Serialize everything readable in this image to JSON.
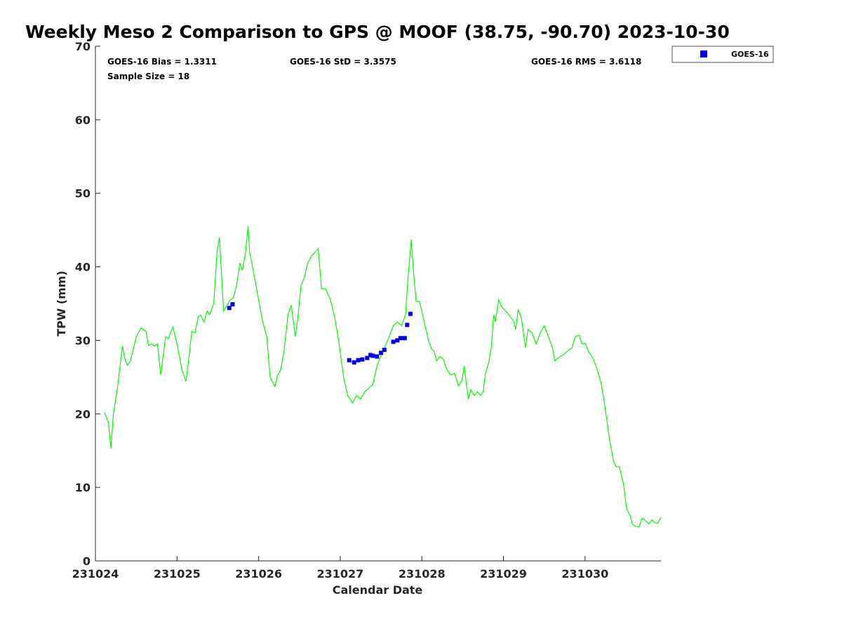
{
  "chart_data": {
    "type": "line",
    "title": "Weekly Meso 2 Comparison to GPS @ MOOF (38.75, -90.70) 2023-10-30",
    "xlabel": "Calendar Date",
    "ylabel": "TPW (mm)",
    "xlim": [
      231024,
      231030.93
    ],
    "ylim": [
      0,
      70
    ],
    "xticks": [
      231024,
      231025,
      231026,
      231027,
      231028,
      231029,
      231030
    ],
    "xtick_labels": [
      "231024",
      "231025",
      "231026",
      "231027",
      "231028",
      "231029",
      "231030"
    ],
    "yticks": [
      0,
      10,
      20,
      30,
      40,
      50,
      60,
      70
    ],
    "ytick_labels": [
      "0",
      "10",
      "20",
      "30",
      "40",
      "50",
      "60",
      "70"
    ],
    "grid": false,
    "legend_position": "outside-top-right",
    "stats": {
      "bias": "GOES-16 Bias = 1.3311",
      "std": "GOES-16 StD = 3.3575",
      "rms": "GOES-16 RMS = 3.6118",
      "sample_size": "Sample Size = 18"
    },
    "series": [
      {
        "name": "GPS",
        "kind": "line",
        "color": "#00ff00",
        "points": [
          [
            231024.11,
            20.2
          ],
          [
            231024.16,
            18.8
          ],
          [
            231024.19,
            15.3
          ],
          [
            231024.22,
            20.0
          ],
          [
            231024.27,
            23.5
          ],
          [
            231024.33,
            29.2
          ],
          [
            231024.36,
            27.5
          ],
          [
            231024.39,
            26.6
          ],
          [
            231024.43,
            27.2
          ],
          [
            231024.5,
            30.5
          ],
          [
            231024.56,
            31.7
          ],
          [
            231024.62,
            31.2
          ],
          [
            231024.65,
            29.3
          ],
          [
            231024.69,
            29.5
          ],
          [
            231024.72,
            29.2
          ],
          [
            231024.76,
            29.5
          ],
          [
            231024.8,
            25.3
          ],
          [
            231024.86,
            30.5
          ],
          [
            231024.89,
            30.2
          ],
          [
            231024.95,
            31.8
          ],
          [
            231025.0,
            29.5
          ],
          [
            231025.06,
            26.0
          ],
          [
            231025.11,
            24.4
          ],
          [
            231025.15,
            28.0
          ],
          [
            231025.18,
            31.2
          ],
          [
            231025.22,
            31.0
          ],
          [
            231025.26,
            33.2
          ],
          [
            231025.29,
            33.4
          ],
          [
            231025.33,
            32.5
          ],
          [
            231025.37,
            34.0
          ],
          [
            231025.4,
            33.5
          ],
          [
            231025.45,
            35.0
          ],
          [
            231025.49,
            42.0
          ],
          [
            231025.52,
            44.0
          ],
          [
            231025.55,
            38.0
          ],
          [
            231025.57,
            34.0
          ],
          [
            231025.6,
            34.5
          ],
          [
            231025.65,
            35.5
          ],
          [
            231025.69,
            35.8
          ],
          [
            231025.73,
            37.5
          ],
          [
            231025.77,
            40.5
          ],
          [
            231025.8,
            39.5
          ],
          [
            231025.84,
            42.0
          ],
          [
            231025.87,
            45.5
          ],
          [
            231025.89,
            42.0
          ],
          [
            231025.95,
            38.5
          ],
          [
            231026.0,
            35.5
          ],
          [
            231026.05,
            32.5
          ],
          [
            231026.1,
            30.5
          ],
          [
            231026.14,
            25.0
          ],
          [
            231026.2,
            23.7
          ],
          [
            231026.23,
            25.2
          ],
          [
            231026.27,
            26.0
          ],
          [
            231026.31,
            28.5
          ],
          [
            231026.36,
            33.5
          ],
          [
            231026.4,
            34.8
          ],
          [
            231026.45,
            30.5
          ],
          [
            231026.48,
            33.0
          ],
          [
            231026.52,
            37.5
          ],
          [
            231026.56,
            38.5
          ],
          [
            231026.6,
            40.5
          ],
          [
            231026.65,
            41.5
          ],
          [
            231026.73,
            42.5
          ],
          [
            231026.77,
            37.0
          ],
          [
            231026.82,
            37.0
          ],
          [
            231026.88,
            35.5
          ],
          [
            231026.93,
            33.2
          ],
          [
            231026.98,
            30.0
          ],
          [
            231027.04,
            25.0
          ],
          [
            231027.09,
            22.5
          ],
          [
            231027.15,
            21.5
          ],
          [
            231027.2,
            22.5
          ],
          [
            231027.25,
            22.0
          ],
          [
            231027.3,
            23.0
          ],
          [
            231027.35,
            23.5
          ],
          [
            231027.4,
            24.0
          ],
          [
            231027.45,
            26.5
          ],
          [
            231027.5,
            28.0
          ],
          [
            231027.55,
            29.2
          ],
          [
            231027.6,
            30.5
          ],
          [
            231027.65,
            32.0
          ],
          [
            231027.7,
            32.5
          ],
          [
            231027.75,
            32.0
          ],
          [
            231027.8,
            33.5
          ],
          [
            231027.83,
            38.5
          ],
          [
            231027.85,
            41.0
          ],
          [
            231027.87,
            43.7
          ],
          [
            231027.9,
            39.0
          ],
          [
            231027.93,
            35.3
          ],
          [
            231027.97,
            35.3
          ],
          [
            231028.02,
            33.0
          ],
          [
            231028.08,
            30.0
          ],
          [
            231028.12,
            28.8
          ],
          [
            231028.15,
            28.5
          ],
          [
            231028.18,
            27.2
          ],
          [
            231028.22,
            27.8
          ],
          [
            231028.26,
            27.5
          ],
          [
            231028.3,
            26.2
          ],
          [
            231028.35,
            25.3
          ],
          [
            231028.4,
            25.5
          ],
          [
            231028.45,
            23.8
          ],
          [
            231028.49,
            24.5
          ],
          [
            231028.52,
            26.5
          ],
          [
            231028.54,
            24.5
          ],
          [
            231028.57,
            22.0
          ],
          [
            231028.6,
            23.3
          ],
          [
            231028.64,
            22.5
          ],
          [
            231028.68,
            23.0
          ],
          [
            231028.72,
            22.5
          ],
          [
            231028.75,
            23.0
          ],
          [
            231028.78,
            25.5
          ],
          [
            231028.82,
            27.0
          ],
          [
            231028.85,
            29.0
          ],
          [
            231028.88,
            33.5
          ],
          [
            231028.9,
            32.5
          ],
          [
            231028.94,
            35.5
          ],
          [
            231028.98,
            34.5
          ],
          [
            231029.05,
            33.7
          ],
          [
            231029.12,
            32.7
          ],
          [
            231029.15,
            31.5
          ],
          [
            231029.18,
            34.2
          ],
          [
            231029.22,
            33.0
          ],
          [
            231029.27,
            29.0
          ],
          [
            231029.3,
            31.5
          ],
          [
            231029.35,
            31.0
          ],
          [
            231029.4,
            29.5
          ],
          [
            231029.45,
            31.0
          ],
          [
            231029.5,
            32.0
          ],
          [
            231029.55,
            30.5
          ],
          [
            231029.6,
            29.0
          ],
          [
            231029.63,
            27.2
          ],
          [
            231029.68,
            27.7
          ],
          [
            231029.73,
            28.0
          ],
          [
            231029.78,
            28.5
          ],
          [
            231029.84,
            29.0
          ],
          [
            231029.88,
            30.5
          ],
          [
            231029.93,
            30.7
          ],
          [
            231029.96,
            29.5
          ],
          [
            231030.0,
            29.6
          ],
          [
            231030.04,
            28.5
          ],
          [
            231030.1,
            27.5
          ],
          [
            231030.15,
            26.0
          ],
          [
            231030.2,
            24.0
          ],
          [
            231030.25,
            20.5
          ],
          [
            231030.3,
            16.5
          ],
          [
            231030.35,
            13.5
          ],
          [
            231030.38,
            12.8
          ],
          [
            231030.42,
            12.8
          ],
          [
            231030.47,
            10.5
          ],
          [
            231030.51,
            7.0
          ],
          [
            231030.55,
            6.2
          ],
          [
            231030.58,
            5.0
          ],
          [
            231030.62,
            4.7
          ],
          [
            231030.66,
            4.6
          ],
          [
            231030.7,
            5.8
          ],
          [
            231030.74,
            5.5
          ],
          [
            231030.78,
            5.0
          ],
          [
            231030.82,
            5.6
          ],
          [
            231030.85,
            5.2
          ],
          [
            231030.89,
            5.1
          ],
          [
            231030.93,
            5.9
          ]
        ]
      },
      {
        "name": "GOES-16",
        "kind": "marker",
        "color": "#0000e6",
        "points": [
          [
            231025.64,
            34.4
          ],
          [
            231025.68,
            34.9
          ],
          [
            231027.11,
            27.3
          ],
          [
            231027.17,
            27.0
          ],
          [
            231027.22,
            27.3
          ],
          [
            231027.27,
            27.4
          ],
          [
            231027.33,
            27.6
          ],
          [
            231027.37,
            28.0
          ],
          [
            231027.4,
            27.9
          ],
          [
            231027.45,
            27.8
          ],
          [
            231027.5,
            28.3
          ],
          [
            231027.54,
            28.7
          ],
          [
            231027.65,
            29.8
          ],
          [
            231027.7,
            30.0
          ],
          [
            231027.74,
            30.3
          ],
          [
            231027.79,
            30.3
          ],
          [
            231027.82,
            32.1
          ],
          [
            231027.86,
            33.6
          ]
        ]
      }
    ]
  }
}
